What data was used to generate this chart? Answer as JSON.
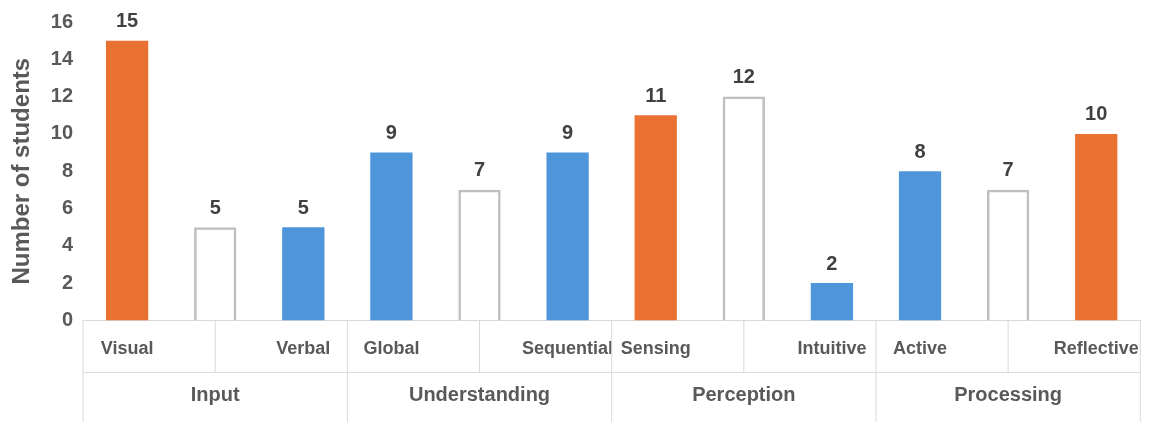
{
  "chart_data": {
    "type": "bar",
    "ylabel": "Number of students",
    "categories": [
      "Visual",
      null,
      "Verbal",
      "Global",
      null,
      "Sequential",
      "Sensing",
      null,
      "Intuitive",
      "Active",
      null,
      "Reflective"
    ],
    "values": [
      15,
      5,
      5,
      9,
      7,
      9,
      11,
      12,
      2,
      8,
      7,
      10
    ],
    "colors": [
      "#e97132",
      "#bfbfbf",
      "#4e95d9",
      "#4e95d9",
      "#bfbfbf",
      "#4e95d9",
      "#e97132",
      "#bfbfbf",
      "#4e95d9",
      "#4e95d9",
      "#bfbfbf",
      "#e97132"
    ],
    "ylim": [
      0,
      16
    ],
    "yticks": [
      0,
      2,
      4,
      6,
      8,
      10,
      12,
      14,
      16
    ],
    "grid": false,
    "legend": false,
    "data_labels": true,
    "annotations": [
      "Input",
      "Understanding",
      "Perception",
      "Processing"
    ]
  }
}
